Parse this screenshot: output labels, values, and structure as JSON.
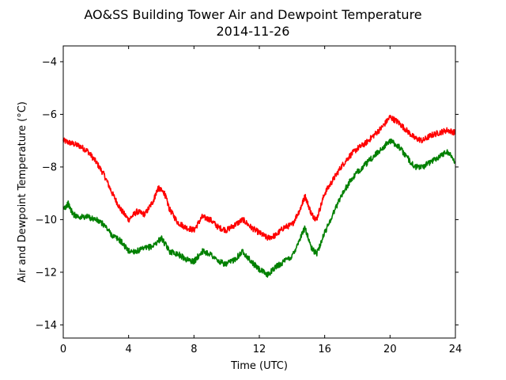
{
  "chart_data": {
    "type": "line",
    "title": "AO&SS Building Tower Air and Dewpoint Temperature",
    "subtitle": "2014-11-26",
    "xlabel": "Time (UTC)",
    "ylabel": "Air and Dewpoint Temperature (°C)",
    "xlim": [
      0,
      24
    ],
    "ylim": [
      -14.5,
      -3.4
    ],
    "xticks": [
      0,
      4,
      8,
      12,
      16,
      20,
      24
    ],
    "yticks": [
      -14,
      -12,
      -10,
      -8,
      -6,
      -4
    ],
    "ytick_labels": [
      "−14",
      "−12",
      "−10",
      "−8",
      "−6",
      "−4"
    ],
    "grid": false,
    "series": [
      {
        "color": "#ff0000",
        "x": [
          0,
          0.5,
          1,
          1.5,
          2,
          2.5,
          3,
          3.5,
          4,
          4.5,
          5,
          5.5,
          5.8,
          6.2,
          6.5,
          7,
          7.5,
          8,
          8.5,
          9,
          9.5,
          10,
          10.5,
          11,
          11.5,
          12,
          12.5,
          13,
          13.5,
          14,
          14.5,
          14.8,
          15.2,
          15.5,
          16,
          16.5,
          17,
          17.5,
          18,
          18.5,
          19,
          19.5,
          20,
          20.5,
          21,
          21.5,
          22,
          22.5,
          23,
          23.5,
          24
        ],
        "y": [
          -7.0,
          -7.1,
          -7.2,
          -7.4,
          -7.8,
          -8.3,
          -9.0,
          -9.6,
          -10.0,
          -9.7,
          -9.8,
          -9.3,
          -8.8,
          -9.0,
          -9.6,
          -10.1,
          -10.3,
          -10.4,
          -9.9,
          -10.0,
          -10.3,
          -10.4,
          -10.2,
          -10.0,
          -10.3,
          -10.5,
          -10.7,
          -10.6,
          -10.3,
          -10.2,
          -9.6,
          -9.1,
          -9.8,
          -10.0,
          -9.0,
          -8.5,
          -8.0,
          -7.6,
          -7.3,
          -7.1,
          -6.8,
          -6.5,
          -6.1,
          -6.3,
          -6.6,
          -6.9,
          -7.0,
          -6.8,
          -6.7,
          -6.6,
          -6.7
        ]
      },
      {
        "color": "#008000",
        "x": [
          0,
          0.3,
          0.6,
          1,
          1.5,
          2,
          2.5,
          3,
          3.5,
          4,
          4.5,
          5,
          5.5,
          6,
          6.5,
          7,
          7.5,
          8,
          8.5,
          9,
          9.5,
          10,
          10.5,
          11,
          11.5,
          12,
          12.5,
          13,
          13.5,
          14,
          14.5,
          14.8,
          15.2,
          15.5,
          16,
          16.5,
          17,
          17.5,
          18,
          18.5,
          19,
          19.5,
          20,
          20.5,
          21,
          21.5,
          22,
          22.5,
          23,
          23.5,
          24
        ],
        "y": [
          -9.6,
          -9.4,
          -9.8,
          -9.9,
          -9.9,
          -10.0,
          -10.2,
          -10.6,
          -10.8,
          -11.2,
          -11.2,
          -11.1,
          -11.0,
          -10.7,
          -11.2,
          -11.3,
          -11.5,
          -11.6,
          -11.2,
          -11.3,
          -11.6,
          -11.7,
          -11.5,
          -11.2,
          -11.6,
          -11.9,
          -12.1,
          -11.8,
          -11.6,
          -11.4,
          -10.7,
          -10.3,
          -11.1,
          -11.3,
          -10.5,
          -9.8,
          -9.1,
          -8.6,
          -8.2,
          -7.9,
          -7.6,
          -7.3,
          -7.0,
          -7.2,
          -7.6,
          -8.0,
          -8.0,
          -7.8,
          -7.6,
          -7.4,
          -7.8
        ]
      }
    ]
  }
}
